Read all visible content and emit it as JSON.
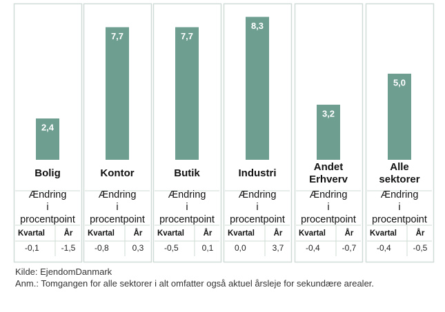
{
  "chart_data": {
    "type": "bar",
    "categories": [
      "Bolig",
      "Kontor",
      "Butik",
      "Industri",
      "Andet Erhverv",
      "Alle sektorer"
    ],
    "values": [
      2.4,
      7.7,
      7.7,
      8.3,
      3.2,
      5.0
    ],
    "value_labels": [
      "2,4",
      "7,7",
      "7,7",
      "8,3",
      "3,2",
      "5,0"
    ],
    "color": "#6e9e90"
  },
  "table": {
    "header": "Ændring i procentpoint",
    "columns": [
      "Kvartal",
      "År"
    ],
    "rows": [
      [
        "-0,1",
        "-1,5"
      ],
      [
        "-0,8",
        "0,3"
      ],
      [
        "-0,5",
        "0,1"
      ],
      [
        "0,0",
        "3,7"
      ],
      [
        "-0,4",
        "-0,7"
      ],
      [
        "-0,4",
        "-0,5"
      ]
    ]
  },
  "footer": {
    "source": "Kilde: EjendomDanmark",
    "note": "Anm.: Tomgangen for alle sektorer i alt omfatter også aktuel årsleje for sekundære arealer."
  }
}
